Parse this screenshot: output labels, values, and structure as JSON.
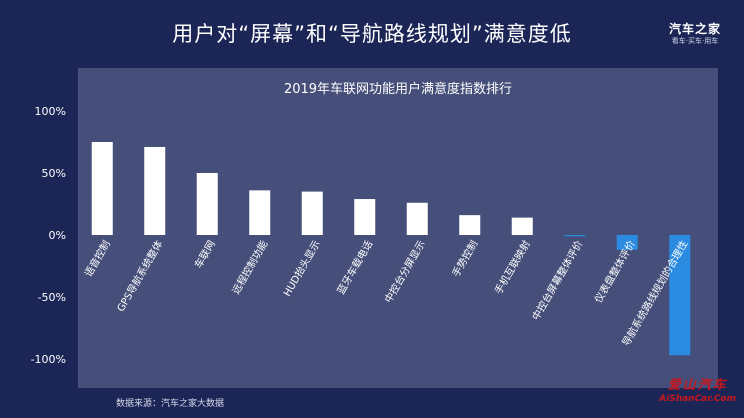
{
  "header": {
    "title": "用户对“屏幕”和“导航路线规划”满意度低"
  },
  "logo": {
    "name": "汽车之家",
    "tagline": "看车·买车·用车"
  },
  "chart_data": {
    "type": "bar",
    "title": "2019年车联网功能用户满意度指数排行",
    "xlabel": "",
    "ylabel": "",
    "ylim": [
      -100,
      100
    ],
    "yticks": [
      100,
      50,
      0,
      -50,
      -100
    ],
    "ytick_labels": [
      "100%",
      "50%",
      "0%",
      "-50%",
      "-100%"
    ],
    "categories": [
      "语音控制",
      "GPS导航系统整体",
      "车联网",
      "远程控制功能",
      "HUD抬头显示",
      "蓝牙车载电话",
      "中控台分屏显示",
      "手势控制",
      "手机互联映射",
      "中控台屏幕整体评价",
      "仪表盘整体评价",
      "导航系统路线规划的合理性"
    ],
    "values": [
      75,
      71,
      50,
      36,
      35,
      29,
      26,
      16,
      14,
      -1,
      -12,
      -97
    ],
    "positive_color": "#ffffff",
    "negative_color": "#2a8be0",
    "grid": false,
    "legend": "none"
  },
  "footer": {
    "source": "数据来源：汽车之家大数据"
  },
  "watermark": {
    "cn": "爱山汽车",
    "en": "AiShanCar.Com"
  }
}
